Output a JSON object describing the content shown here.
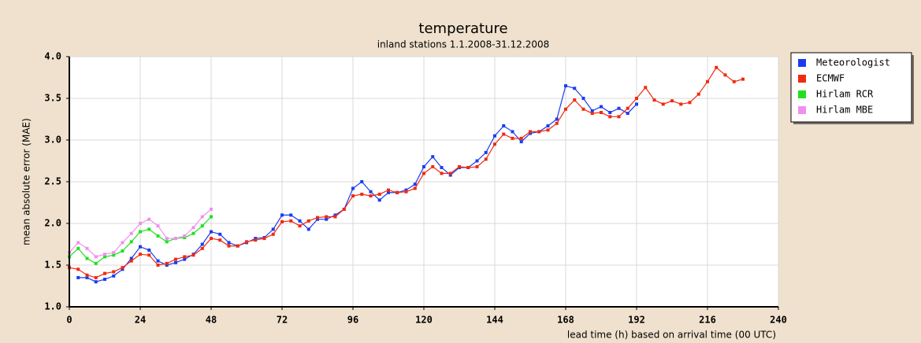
{
  "chart_data": {
    "type": "line",
    "title": "temperature",
    "subtitle": "inland stations 1.1.2008-31.12.2008",
    "ylabel": "mean absolute error (MAE)",
    "xlabel": "lead time (h) based on arrival time (00 UTC)",
    "xlim": [
      0,
      240
    ],
    "xticks": [
      0,
      24,
      48,
      72,
      96,
      120,
      144,
      168,
      192,
      216,
      240
    ],
    "ylim": [
      1.0,
      4.0
    ],
    "yticks": [
      {
        "value": 1.0,
        "label": "1.0"
      },
      1.5,
      {
        "value": 2.0,
        "label": "2.0"
      },
      2.5,
      {
        "value": 3.0,
        "label": "3.0"
      },
      3.5,
      {
        "value": 4.0,
        "label": "4.0"
      }
    ],
    "grid": true,
    "legend": "outside-right",
    "series": [
      {
        "name": "Meteorologist",
        "color": "#1a3cf0",
        "x": [
          3,
          6,
          9,
          12,
          15,
          18,
          21,
          24,
          27,
          30,
          33,
          36,
          39,
          42,
          45,
          48,
          51,
          54,
          57,
          60,
          63,
          66,
          69,
          72,
          75,
          78,
          81,
          84,
          87,
          90,
          93,
          96,
          99,
          102,
          105,
          108,
          111,
          114,
          117,
          120,
          123,
          126,
          129,
          132,
          135,
          138,
          141,
          144,
          147,
          150,
          153,
          156,
          159,
          162,
          165,
          168,
          171,
          174,
          177,
          180,
          183,
          186,
          189,
          192
        ],
        "values": [
          1.35,
          1.35,
          1.3,
          1.33,
          1.37,
          1.45,
          1.58,
          1.72,
          1.68,
          1.55,
          1.5,
          1.53,
          1.57,
          1.63,
          1.75,
          1.9,
          1.87,
          1.77,
          1.73,
          1.77,
          1.82,
          1.83,
          1.93,
          2.1,
          2.1,
          2.03,
          1.93,
          2.05,
          2.05,
          2.1,
          2.17,
          2.42,
          2.5,
          2.38,
          2.28,
          2.37,
          2.37,
          2.4,
          2.47,
          2.68,
          2.8,
          2.67,
          2.58,
          2.67,
          2.67,
          2.75,
          2.85,
          3.05,
          3.17,
          3.1,
          2.98,
          3.08,
          3.1,
          3.17,
          3.25,
          3.65,
          3.62,
          3.5,
          3.35,
          3.4,
          3.33,
          3.38,
          3.32,
          3.43
        ]
      },
      {
        "name": "ECMWF",
        "color": "#f02a10",
        "x": [
          0,
          3,
          6,
          9,
          12,
          15,
          18,
          21,
          24,
          27,
          30,
          33,
          36,
          39,
          42,
          45,
          48,
          51,
          54,
          57,
          60,
          63,
          66,
          69,
          72,
          75,
          78,
          81,
          84,
          87,
          90,
          93,
          96,
          99,
          102,
          105,
          108,
          111,
          114,
          117,
          120,
          123,
          126,
          129,
          132,
          135,
          138,
          141,
          144,
          147,
          150,
          153,
          156,
          159,
          162,
          165,
          168,
          171,
          174,
          177,
          180,
          183,
          186,
          189,
          192,
          195,
          198,
          201,
          204,
          207,
          210,
          213,
          216,
          219,
          222,
          225,
          228
        ],
        "values": [
          1.47,
          1.45,
          1.38,
          1.35,
          1.4,
          1.42,
          1.47,
          1.55,
          1.63,
          1.62,
          1.5,
          1.52,
          1.57,
          1.6,
          1.62,
          1.7,
          1.82,
          1.8,
          1.73,
          1.73,
          1.78,
          1.8,
          1.82,
          1.87,
          2.02,
          2.03,
          1.97,
          2.03,
          2.07,
          2.08,
          2.08,
          2.17,
          2.33,
          2.35,
          2.33,
          2.35,
          2.4,
          2.37,
          2.38,
          2.42,
          2.6,
          2.68,
          2.6,
          2.6,
          2.68,
          2.67,
          2.68,
          2.77,
          2.95,
          3.07,
          3.02,
          3.02,
          3.1,
          3.1,
          3.12,
          3.2,
          3.37,
          3.48,
          3.37,
          3.32,
          3.33,
          3.28,
          3.28,
          3.38,
          3.5,
          3.63,
          3.48,
          3.43,
          3.47,
          3.43,
          3.45,
          3.55,
          3.7,
          3.87,
          3.78,
          3.7,
          3.73
        ]
      },
      {
        "name": "Hirlam RCR",
        "color": "#20e020",
        "x": [
          0,
          3,
          6,
          9,
          12,
          15,
          18,
          21,
          24,
          27,
          30,
          33,
          36,
          39,
          42,
          45,
          48
        ],
        "values": [
          1.6,
          1.7,
          1.58,
          1.52,
          1.6,
          1.62,
          1.67,
          1.78,
          1.9,
          1.93,
          1.85,
          1.78,
          1.82,
          1.83,
          1.88,
          1.97,
          2.08
        ]
      },
      {
        "name": "Hirlam MBE",
        "color": "#ee90ee",
        "x": [
          0,
          3,
          6,
          9,
          12,
          15,
          18,
          21,
          24,
          27,
          30,
          33,
          36,
          39,
          42,
          45,
          48
        ],
        "values": [
          1.65,
          1.77,
          1.7,
          1.6,
          1.63,
          1.65,
          1.77,
          1.88,
          2.0,
          2.05,
          1.97,
          1.82,
          1.82,
          1.85,
          1.95,
          2.08,
          2.17
        ]
      }
    ]
  }
}
